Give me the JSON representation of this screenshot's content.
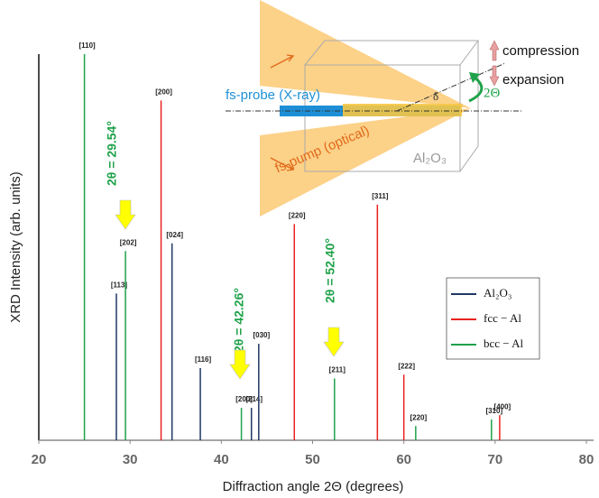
{
  "chart_data": {
    "type": "stick",
    "xlabel": "Diffraction angle 2Θ (degrees)",
    "ylabel": "XRD Intensity (arb. units)",
    "xlim": [
      20,
      80
    ],
    "xticks": [
      20,
      30,
      40,
      50,
      60,
      70,
      80
    ],
    "ylim": [
      0,
      100
    ],
    "legend": "right",
    "series": [
      {
        "name": "Al₂O₃",
        "color": "#1f3864",
        "x": [
          28.5,
          34.6,
          37.7,
          43.3,
          44.1
        ],
        "values": [
          38,
          51,
          18.7,
          8.4,
          25
        ],
        "peak_labels": [
          "[113]",
          "[024]",
          "[116]",
          "[214]",
          "[030]"
        ]
      },
      {
        "name": "fcc − Al",
        "color": "#e8221f",
        "x": [
          33.4,
          48,
          57.1,
          60,
          70.5
        ],
        "values": [
          88,
          56,
          61,
          17,
          6.5
        ],
        "peak_labels": [
          "[200]",
          "[220]",
          "[311]",
          "[222]",
          "[400]"
        ]
      },
      {
        "name": "bcc − Al",
        "color": "#1fa24a",
        "x": [
          25,
          29.5,
          42.2,
          52.4,
          61.3,
          69.6
        ],
        "values": [
          100,
          49,
          8.4,
          16,
          3.7,
          5.4
        ],
        "peak_labels": [
          "[110]",
          "[202]",
          "[200]",
          "[211]",
          "[220]",
          "[310]"
        ]
      }
    ],
    "annotations": [
      "2θ = 29.54°",
      "2θ = 42.26°",
      "2θ = 52.40°"
    ],
    "inset": {
      "probe": "fs-probe  (X-ray)",
      "pump": "fs-pump (optical)",
      "crystal": "Al₂O₃",
      "compression": "compression",
      "expansion": "expansion",
      "angle": "2Θ",
      "delta": "δ"
    }
  }
}
